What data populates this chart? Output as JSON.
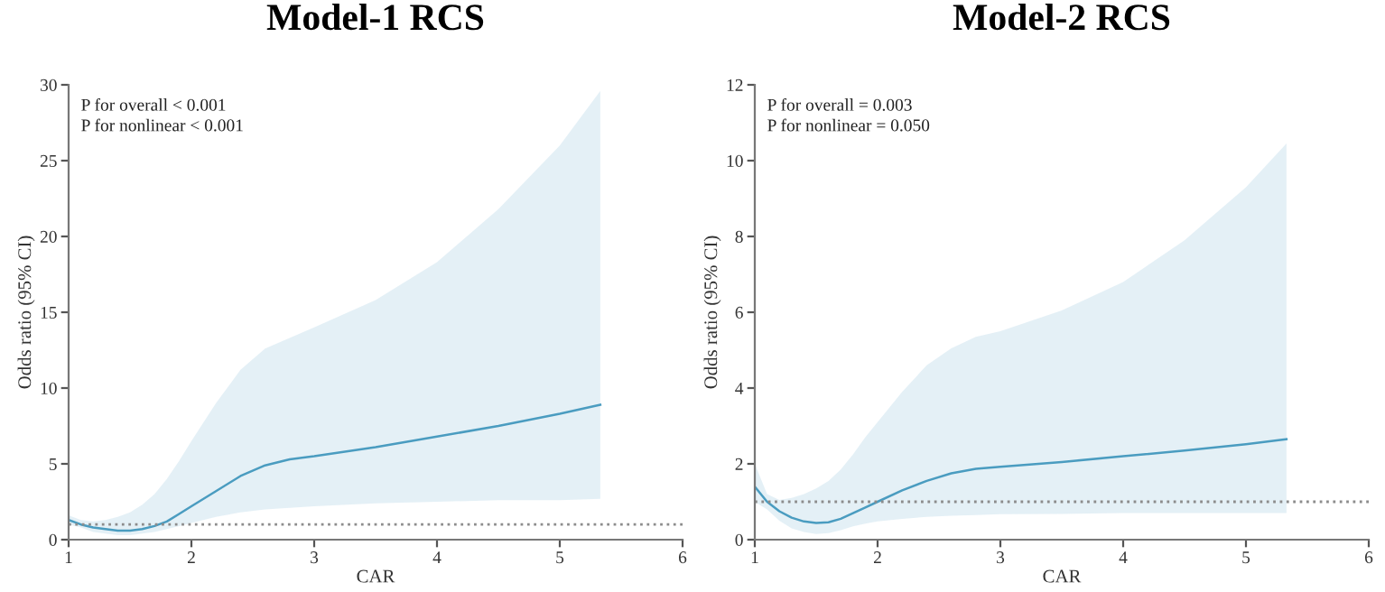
{
  "chart_data": [
    {
      "type": "line",
      "title": "Model-1 RCS",
      "xlabel": "CAR",
      "ylabel": "Odds ratio (95% CI)",
      "xlim": [
        1,
        6
      ],
      "xticks": [
        1,
        2,
        3,
        4,
        5,
        6
      ],
      "ylim": [
        0,
        30
      ],
      "yticks": [
        0,
        5,
        10,
        15,
        20,
        25,
        30
      ],
      "grid": false,
      "line_style": "solid",
      "marker": "none",
      "annotations": [
        "P for overall < 0.001",
        "P for nonlinear < 0.001"
      ],
      "ref_lines": [
        {
          "axis": "y",
          "value": 1,
          "label": null,
          "color": "#8c8c8c",
          "line_style": "dotted"
        }
      ],
      "x": [
        1.0,
        1.1,
        1.2,
        1.3,
        1.4,
        1.5,
        1.6,
        1.7,
        1.8,
        1.9,
        2.0,
        2.2,
        2.4,
        2.6,
        2.8,
        3.0,
        3.5,
        4.0,
        4.5,
        5.0,
        5.33
      ],
      "series": [
        {
          "color": "#4a9cc0",
          "values": [
            1.3,
            1.0,
            0.8,
            0.7,
            0.6,
            0.6,
            0.7,
            0.9,
            1.2,
            1.7,
            2.2,
            3.2,
            4.2,
            4.9,
            5.3,
            5.5,
            6.1,
            6.8,
            7.5,
            8.3,
            8.9
          ],
          "lower": [
            1.0,
            0.8,
            0.5,
            0.4,
            0.3,
            0.3,
            0.4,
            0.5,
            0.7,
            0.9,
            1.1,
            1.5,
            1.8,
            2.0,
            2.1,
            2.2,
            2.4,
            2.5,
            2.6,
            2.6,
            2.7
          ],
          "upper": [
            1.6,
            1.3,
            1.2,
            1.3,
            1.5,
            1.8,
            2.3,
            3.0,
            4.0,
            5.2,
            6.5,
            9.0,
            11.2,
            12.6,
            13.3,
            14.0,
            15.8,
            18.3,
            21.8,
            26.0,
            29.6
          ]
        }
      ]
    },
    {
      "type": "line",
      "title": "Model-2 RCS",
      "xlabel": "CAR",
      "ylabel": "Odds ratio (95% CI)",
      "xlim": [
        1,
        6
      ],
      "xticks": [
        1,
        2,
        3,
        4,
        5,
        6
      ],
      "ylim": [
        0,
        12
      ],
      "yticks": [
        0,
        2,
        4,
        6,
        8,
        10,
        12
      ],
      "grid": false,
      "line_style": "solid",
      "marker": "none",
      "annotations": [
        "P for overall = 0.003",
        "P for nonlinear = 0.050"
      ],
      "ref_lines": [
        {
          "axis": "y",
          "value": 1,
          "label": null,
          "color": "#8c8c8c",
          "line_style": "dotted"
        }
      ],
      "x": [
        1.0,
        1.1,
        1.2,
        1.3,
        1.4,
        1.5,
        1.6,
        1.7,
        1.8,
        1.9,
        2.0,
        2.2,
        2.4,
        2.6,
        2.8,
        3.0,
        3.5,
        4.0,
        4.5,
        5.0,
        5.33
      ],
      "series": [
        {
          "color": "#4a9cc0",
          "values": [
            1.4,
            1.0,
            0.75,
            0.58,
            0.48,
            0.44,
            0.46,
            0.55,
            0.7,
            0.85,
            1.0,
            1.3,
            1.55,
            1.75,
            1.87,
            1.92,
            2.05,
            2.2,
            2.35,
            2.52,
            2.65
          ],
          "lower": [
            1.0,
            0.8,
            0.5,
            0.3,
            0.2,
            0.15,
            0.17,
            0.25,
            0.35,
            0.42,
            0.48,
            0.55,
            0.6,
            0.63,
            0.65,
            0.67,
            0.68,
            0.7,
            0.7,
            0.7,
            0.7
          ],
          "upper": [
            2.0,
            1.2,
            1.05,
            1.1,
            1.2,
            1.35,
            1.55,
            1.85,
            2.25,
            2.7,
            3.1,
            3.9,
            4.6,
            5.05,
            5.35,
            5.5,
            6.05,
            6.8,
            7.9,
            9.3,
            10.45
          ]
        }
      ]
    }
  ]
}
